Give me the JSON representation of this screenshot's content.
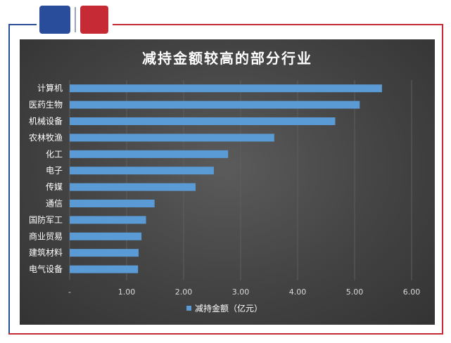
{
  "chart_data": {
    "type": "bar",
    "orientation": "horizontal",
    "title": "减持金额较高的部分行业",
    "categories": [
      "计算机",
      "医药生物",
      "机械设备",
      "农林牧渔",
      "化工",
      "电子",
      "传媒",
      "通信",
      "国防军工",
      "商业贸易",
      "建筑材料",
      "电气设备"
    ],
    "series": [
      {
        "name": "减持金额（亿元）",
        "values": [
          5.48,
          5.09,
          4.66,
          3.59,
          2.78,
          2.53,
          2.21,
          1.49,
          1.34,
          1.26,
          1.21,
          1.2
        ]
      }
    ],
    "xlim": [
      0,
      6
    ],
    "x_ticks": [
      "-",
      "1.00",
      "2.00",
      "3.00",
      "4.00",
      "5.00",
      "6.00"
    ],
    "grid": "vertical",
    "legend_position": "bottom",
    "colors": {
      "bar": "#5b9bd5",
      "background": "#404040",
      "text": "#ffffff",
      "tick": "#d9d9d9",
      "grid": "#5e5e5e"
    }
  },
  "brand": {
    "blue": "#2a4d9b",
    "red": "#c62a35"
  }
}
